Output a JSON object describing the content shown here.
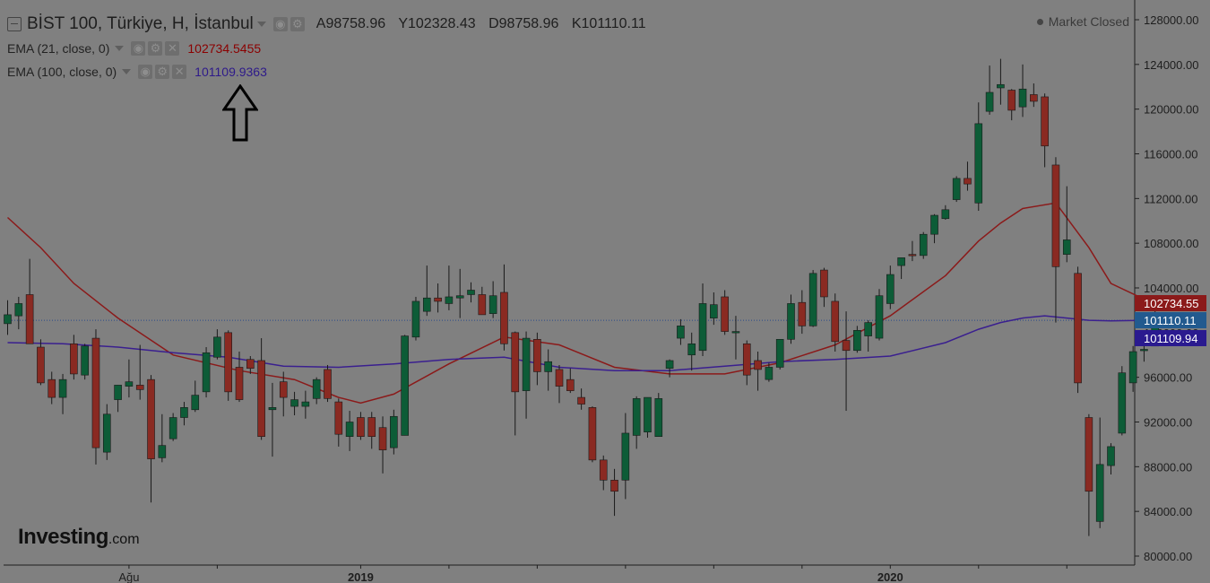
{
  "header": {
    "title": "BİST 100, Türkiye, H, İstanbul",
    "open": "A98758.96",
    "high": "Y102328.43",
    "low": "D98758.96",
    "close": "K101110.11"
  },
  "indicators": [
    {
      "label": "EMA (21, close, 0)",
      "value": "102734.5455",
      "color": "#8b0000"
    },
    {
      "label": "EMA (100, close, 0)",
      "value": "101109.9363",
      "color": "#2e1a8a"
    }
  ],
  "market_status": "Market Closed",
  "logo": {
    "main": "Investing",
    "suffix": ".com"
  },
  "colors": {
    "background": "#808080",
    "up": "#0d5c37",
    "down": "#8a2a22",
    "ema21": "#8b1a1a",
    "ema100": "#3a1f8f",
    "axis_text": "#1e1e1e"
  },
  "chart_data": {
    "type": "candlestick",
    "title": "BİST 100, Türkiye, H, İstanbul",
    "ylim": [
      79000,
      129000
    ],
    "y_ticks": [
      "80000.00",
      "84000.00",
      "88000.00",
      "92000.00",
      "96000.00",
      "100000.00",
      "104000.00",
      "108000.00",
      "112000.00",
      "116000.00",
      "120000.00",
      "124000.00",
      "128000.00"
    ],
    "x_ticks": [
      {
        "label": "Ağu",
        "index": 11
      },
      {
        "label": "2019",
        "index": 32
      },
      {
        "label": "2020",
        "index": 80
      }
    ],
    "candles": [
      {
        "o": 100800,
        "h": 102900,
        "l": 99800,
        "c": 101600
      },
      {
        "o": 101500,
        "h": 103200,
        "l": 100300,
        "c": 102600
      },
      {
        "o": 103400,
        "h": 106600,
        "l": 99000,
        "c": 99000
      },
      {
        "o": 98700,
        "h": 99400,
        "l": 95300,
        "c": 95500
      },
      {
        "o": 95800,
        "h": 96500,
        "l": 93600,
        "c": 94200
      },
      {
        "o": 94200,
        "h": 96300,
        "l": 92700,
        "c": 95800
      },
      {
        "o": 99000,
        "h": 99800,
        "l": 95800,
        "c": 96300
      },
      {
        "o": 96200,
        "h": 99000,
        "l": 95800,
        "c": 98800
      },
      {
        "o": 99500,
        "h": 100300,
        "l": 88200,
        "c": 89700
      },
      {
        "o": 89300,
        "h": 93600,
        "l": 88600,
        "c": 92700
      },
      {
        "o": 94000,
        "h": 95300,
        "l": 92900,
        "c": 95300
      },
      {
        "o": 95200,
        "h": 97600,
        "l": 94200,
        "c": 95600
      },
      {
        "o": 95300,
        "h": 98900,
        "l": 94000,
        "c": 94900
      },
      {
        "o": 95800,
        "h": 96200,
        "l": 84800,
        "c": 88700
      },
      {
        "o": 88800,
        "h": 92700,
        "l": 88400,
        "c": 89900
      },
      {
        "o": 90500,
        "h": 92800,
        "l": 90300,
        "c": 92400
      },
      {
        "o": 92400,
        "h": 93800,
        "l": 91700,
        "c": 93300
      },
      {
        "o": 93100,
        "h": 95700,
        "l": 92900,
        "c": 94400
      },
      {
        "o": 94700,
        "h": 98700,
        "l": 94200,
        "c": 98200
      },
      {
        "o": 97800,
        "h": 100300,
        "l": 97600,
        "c": 99600
      },
      {
        "o": 100000,
        "h": 100200,
        "l": 93900,
        "c": 94700
      },
      {
        "o": 96900,
        "h": 98300,
        "l": 93800,
        "c": 94000
      },
      {
        "o": 97600,
        "h": 97900,
        "l": 96300,
        "c": 96800
      },
      {
        "o": 97500,
        "h": 99500,
        "l": 90400,
        "c": 90700
      },
      {
        "o": 93100,
        "h": 95500,
        "l": 88900,
        "c": 93300
      },
      {
        "o": 95600,
        "h": 96500,
        "l": 92500,
        "c": 94200
      },
      {
        "o": 93400,
        "h": 94700,
        "l": 92600,
        "c": 94000
      },
      {
        "o": 93400,
        "h": 94800,
        "l": 92300,
        "c": 93800
      },
      {
        "o": 94100,
        "h": 96000,
        "l": 93600,
        "c": 95800
      },
      {
        "o": 96700,
        "h": 97100,
        "l": 93800,
        "c": 94100
      },
      {
        "o": 93800,
        "h": 94100,
        "l": 89800,
        "c": 90900
      },
      {
        "o": 90700,
        "h": 93000,
        "l": 89400,
        "c": 92000
      },
      {
        "o": 92400,
        "h": 92900,
        "l": 90400,
        "c": 90700
      },
      {
        "o": 92400,
        "h": 92900,
        "l": 89600,
        "c": 90700
      },
      {
        "o": 91500,
        "h": 92500,
        "l": 87400,
        "c": 89500
      },
      {
        "o": 89700,
        "h": 93100,
        "l": 89100,
        "c": 92500
      },
      {
        "o": 90800,
        "h": 99800,
        "l": 90800,
        "c": 99700
      },
      {
        "o": 99600,
        "h": 103200,
        "l": 99300,
        "c": 102800
      },
      {
        "o": 101900,
        "h": 106000,
        "l": 101500,
        "c": 103100
      },
      {
        "o": 103100,
        "h": 104400,
        "l": 101800,
        "c": 102800
      },
      {
        "o": 102600,
        "h": 106000,
        "l": 102000,
        "c": 103200
      },
      {
        "o": 103100,
        "h": 105700,
        "l": 101300,
        "c": 103300
      },
      {
        "o": 103400,
        "h": 104500,
        "l": 102700,
        "c": 103800
      },
      {
        "o": 103400,
        "h": 104100,
        "l": 101600,
        "c": 101600
      },
      {
        "o": 101700,
        "h": 104600,
        "l": 101300,
        "c": 103300
      },
      {
        "o": 103600,
        "h": 106100,
        "l": 98400,
        "c": 99000
      },
      {
        "o": 100000,
        "h": 100100,
        "l": 90800,
        "c": 94700
      },
      {
        "o": 94800,
        "h": 100100,
        "l": 92300,
        "c": 99500
      },
      {
        "o": 99400,
        "h": 100000,
        "l": 95300,
        "c": 96500
      },
      {
        "o": 96500,
        "h": 98500,
        "l": 94800,
        "c": 97400
      },
      {
        "o": 96700,
        "h": 97100,
        "l": 93700,
        "c": 95200
      },
      {
        "o": 95800,
        "h": 96800,
        "l": 94600,
        "c": 94800
      },
      {
        "o": 94200,
        "h": 95000,
        "l": 93100,
        "c": 93600
      },
      {
        "o": 93300,
        "h": 93400,
        "l": 88400,
        "c": 88600
      },
      {
        "o": 88600,
        "h": 89000,
        "l": 85900,
        "c": 86800
      },
      {
        "o": 86800,
        "h": 87800,
        "l": 83600,
        "c": 85800
      },
      {
        "o": 86800,
        "h": 92800,
        "l": 85100,
        "c": 91000
      },
      {
        "o": 90800,
        "h": 94300,
        "l": 89600,
        "c": 94100
      },
      {
        "o": 91100,
        "h": 94200,
        "l": 90600,
        "c": 94200
      },
      {
        "o": 90700,
        "h": 94600,
        "l": 90700,
        "c": 94100
      },
      {
        "o": 96800,
        "h": 97600,
        "l": 96000,
        "c": 97500
      },
      {
        "o": 99500,
        "h": 101200,
        "l": 98900,
        "c": 100600
      },
      {
        "o": 98000,
        "h": 100000,
        "l": 96600,
        "c": 99000
      },
      {
        "o": 98400,
        "h": 104400,
        "l": 97900,
        "c": 102600
      },
      {
        "o": 101300,
        "h": 103600,
        "l": 100700,
        "c": 102500
      },
      {
        "o": 103200,
        "h": 103800,
        "l": 99800,
        "c": 100100
      },
      {
        "o": 100100,
        "h": 101500,
        "l": 97600,
        "c": 100100
      },
      {
        "o": 99000,
        "h": 99300,
        "l": 95300,
        "c": 96200
      },
      {
        "o": 97500,
        "h": 98300,
        "l": 94800,
        "c": 96700
      },
      {
        "o": 95800,
        "h": 97300,
        "l": 95600,
        "c": 96900
      },
      {
        "o": 96900,
        "h": 99000,
        "l": 96700,
        "c": 99400
      },
      {
        "o": 99400,
        "h": 103400,
        "l": 99000,
        "c": 102600
      },
      {
        "o": 102700,
        "h": 103800,
        "l": 99900,
        "c": 100600
      },
      {
        "o": 100600,
        "h": 105600,
        "l": 100500,
        "c": 105300
      },
      {
        "o": 105600,
        "h": 105800,
        "l": 102300,
        "c": 103200
      },
      {
        "o": 102800,
        "h": 103500,
        "l": 98300,
        "c": 99200
      },
      {
        "o": 99300,
        "h": 101900,
        "l": 93000,
        "c": 98400
      },
      {
        "o": 98400,
        "h": 100600,
        "l": 98200,
        "c": 100200
      },
      {
        "o": 99700,
        "h": 101100,
        "l": 98300,
        "c": 100900
      },
      {
        "o": 99500,
        "h": 103900,
        "l": 99300,
        "c": 103300
      },
      {
        "o": 102600,
        "h": 106000,
        "l": 102100,
        "c": 105200
      },
      {
        "o": 106000,
        "h": 106700,
        "l": 104800,
        "c": 106700
      },
      {
        "o": 107000,
        "h": 108200,
        "l": 106400,
        "c": 106900
      },
      {
        "o": 106900,
        "h": 109000,
        "l": 106600,
        "c": 108800
      },
      {
        "o": 108800,
        "h": 110600,
        "l": 108000,
        "c": 110500
      },
      {
        "o": 110200,
        "h": 111400,
        "l": 110100,
        "c": 111000
      },
      {
        "o": 111900,
        "h": 114000,
        "l": 111700,
        "c": 113800
      },
      {
        "o": 113800,
        "h": 115300,
        "l": 112700,
        "c": 113300
      },
      {
        "o": 111600,
        "h": 120600,
        "l": 110900,
        "c": 118700
      },
      {
        "o": 119800,
        "h": 123900,
        "l": 119500,
        "c": 121500
      },
      {
        "o": 121900,
        "h": 124500,
        "l": 120400,
        "c": 122200
      },
      {
        "o": 121700,
        "h": 121800,
        "l": 119000,
        "c": 119900
      },
      {
        "o": 120200,
        "h": 124000,
        "l": 119300,
        "c": 121800
      },
      {
        "o": 121300,
        "h": 122300,
        "l": 120200,
        "c": 120700
      },
      {
        "o": 121100,
        "h": 121400,
        "l": 114800,
        "c": 116700
      },
      {
        "o": 115000,
        "h": 115700,
        "l": 100900,
        "c": 105900
      },
      {
        "o": 107000,
        "h": 113100,
        "l": 106300,
        "c": 108300
      },
      {
        "o": 105300,
        "h": 105900,
        "l": 94600,
        "c": 95500
      },
      {
        "o": 92400,
        "h": 92700,
        "l": 81800,
        "c": 85800
      },
      {
        "o": 83100,
        "h": 92400,
        "l": 82500,
        "c": 88200
      },
      {
        "o": 88100,
        "h": 90100,
        "l": 87300,
        "c": 89800
      },
      {
        "o": 91000,
        "h": 97000,
        "l": 90800,
        "c": 96400
      },
      {
        "o": 95500,
        "h": 98800,
        "l": 94700,
        "c": 98300
      },
      {
        "o": 98400,
        "h": 99600,
        "l": 97400,
        "c": 98500
      },
      {
        "o": 98800,
        "h": 102300,
        "l": 98800,
        "c": 101100
      }
    ],
    "series": [
      {
        "name": "EMA (21, close, 0)",
        "color": "#8b1a1a",
        "x": [
          0,
          3,
          6,
          10,
          15,
          21,
          26,
          30,
          32,
          35,
          40,
          45,
          50,
          55,
          60,
          65,
          70,
          75,
          80,
          85,
          88,
          90,
          92,
          95,
          98,
          100,
          103,
          104
        ],
        "values": [
          110300,
          107600,
          104400,
          101300,
          98000,
          96600,
          95800,
          94200,
          93700,
          94500,
          97200,
          99600,
          98900,
          96900,
          96300,
          96300,
          97300,
          98900,
          101500,
          105100,
          108200,
          109800,
          111100,
          111600,
          107600,
          104400,
          103000,
          102735
        ]
      },
      {
        "name": "EMA (100, close, 0)",
        "color": "#3a1f8f",
        "x": [
          0,
          5,
          10,
          15,
          20,
          25,
          30,
          35,
          40,
          45,
          50,
          55,
          60,
          65,
          70,
          75,
          80,
          85,
          88,
          90,
          92,
          94,
          96,
          98,
          100,
          104
        ],
        "values": [
          99100,
          99000,
          98700,
          98200,
          97800,
          97000,
          96900,
          97200,
          97600,
          97800,
          96900,
          96600,
          96600,
          97000,
          97400,
          97600,
          97900,
          99100,
          100300,
          100900,
          101300,
          101500,
          101300,
          101100,
          101050,
          101110
        ]
      }
    ],
    "price_labels": [
      {
        "value": 102734.55,
        "text": "102734.55",
        "color": "#8b1a1a"
      },
      {
        "value": 101110.11,
        "text": "101110.11",
        "color": "#225a8f"
      },
      {
        "value": 101109.94,
        "text": "101109.94",
        "color": "#2a1a8f"
      }
    ]
  }
}
